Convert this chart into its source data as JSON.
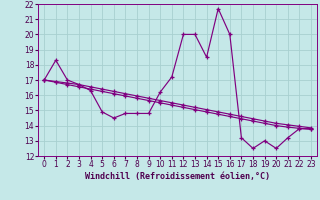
{
  "xlabel": "Windchill (Refroidissement éolien,°C)",
  "background_color": "#c5e8e8",
  "grid_color": "#a8d0d0",
  "line_color": "#800080",
  "spine_color": "#800080",
  "tick_color": "#500050",
  "xlim": [
    -0.5,
    23.5
  ],
  "ylim": [
    12,
    22
  ],
  "yticks": [
    12,
    13,
    14,
    15,
    16,
    17,
    18,
    19,
    20,
    21,
    22
  ],
  "xticks": [
    0,
    1,
    2,
    3,
    4,
    5,
    6,
    7,
    8,
    9,
    10,
    11,
    12,
    13,
    14,
    15,
    16,
    17,
    18,
    19,
    20,
    21,
    22,
    23
  ],
  "line1_x": [
    0,
    1,
    2,
    3,
    4,
    5,
    6,
    7,
    8,
    9,
    10,
    11,
    12,
    13,
    14,
    15,
    16,
    17,
    18,
    19,
    20,
    21,
    22,
    23
  ],
  "line1_y": [
    17.0,
    18.3,
    17.0,
    16.7,
    16.3,
    14.9,
    14.5,
    14.8,
    14.8,
    14.8,
    16.2,
    17.2,
    20.0,
    20.0,
    18.5,
    21.7,
    20.0,
    13.2,
    12.5,
    13.0,
    12.5,
    13.2,
    13.8,
    13.8
  ],
  "line2_x": [
    0,
    1,
    2,
    3,
    4,
    5,
    6,
    7,
    8,
    9,
    10,
    11,
    12,
    13,
    14,
    15,
    16,
    17,
    18,
    19,
    20,
    21,
    22,
    23
  ],
  "line2_y": [
    17.0,
    16.85,
    16.7,
    16.55,
    16.4,
    16.25,
    16.1,
    15.95,
    15.8,
    15.65,
    15.5,
    15.35,
    15.2,
    15.05,
    14.9,
    14.75,
    14.6,
    14.45,
    14.3,
    14.15,
    14.0,
    13.9,
    13.82,
    13.75
  ],
  "line3_x": [
    0,
    1,
    2,
    3,
    4,
    5,
    6,
    7,
    8,
    9,
    10,
    11,
    12,
    13,
    14,
    15,
    16,
    17,
    18,
    19,
    20,
    21,
    22,
    23
  ],
  "line3_y": [
    17.0,
    16.9,
    16.8,
    16.7,
    16.55,
    16.4,
    16.25,
    16.1,
    15.95,
    15.8,
    15.65,
    15.5,
    15.35,
    15.2,
    15.05,
    14.9,
    14.75,
    14.6,
    14.45,
    14.3,
    14.15,
    14.05,
    13.95,
    13.85
  ],
  "xlabel_fontsize": 6.0,
  "tick_fontsize": 5.5
}
